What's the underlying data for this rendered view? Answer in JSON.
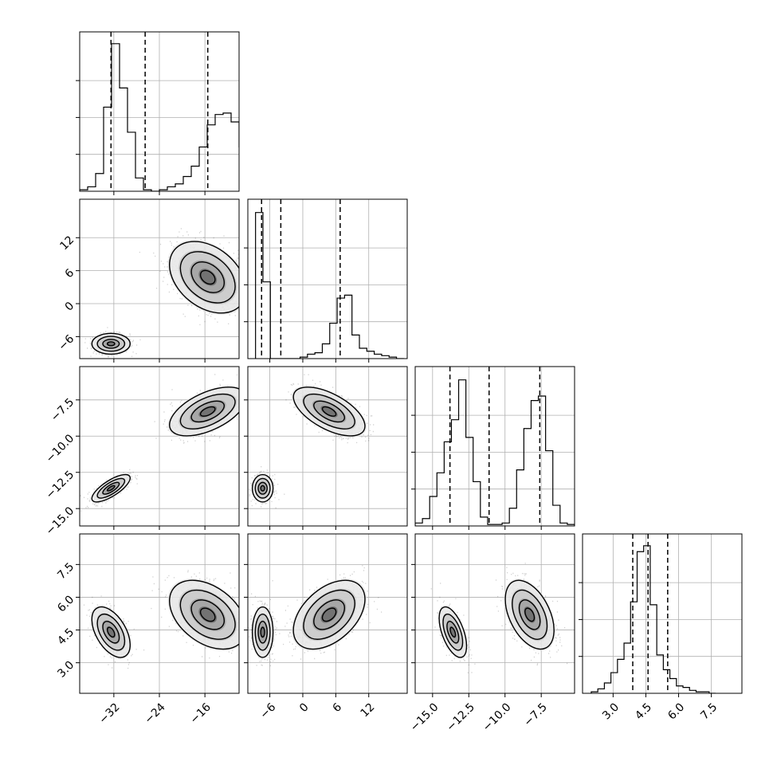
{
  "chart_data": {
    "type": "corner",
    "parameters": [
      {
        "range": [
          -38,
          -10
        ],
        "ticks": [
          -32,
          -24,
          -16
        ],
        "tick_labels": [
          "−32",
          "−24",
          "−16"
        ],
        "quantiles": [
          -32.5,
          -26.5,
          -15.5
        ],
        "hist_edges_start": -38,
        "hist_edges_step": 1.4,
        "hist_counts": [
          0.01,
          0.03,
          0.12,
          0.57,
          1.0,
          0.7,
          0.4,
          0.09,
          0.01,
          0.0,
          0.01,
          0.03,
          0.05,
          0.1,
          0.17,
          0.3,
          0.45,
          0.52,
          0.53,
          0.47,
          0.3,
          0.12,
          0.01
        ],
        "hist_ylim": [
          0,
          1.08
        ]
      },
      {
        "range": [
          -10,
          19
        ],
        "ticks": [
          -6,
          0,
          6,
          12
        ],
        "tick_labels": [
          "−6",
          "0",
          "6",
          "12"
        ],
        "quantiles": [
          -7.5,
          -4.0,
          6.8
        ],
        "hist_edges_start": -8.6,
        "hist_edges_step": 1.35,
        "hist_counts": [
          0.99,
          0.52,
          0.0,
          0.0,
          0.0,
          0.0,
          0.01,
          0.03,
          0.04,
          0.1,
          0.24,
          0.41,
          0.43,
          0.16,
          0.07,
          0.05,
          0.03,
          0.02,
          0.01,
          0.0
        ],
        "hist_ylim": [
          0,
          1.08
        ]
      },
      {
        "range": [
          -16.2,
          -5.2
        ],
        "ticks": [
          -15.0,
          -12.5,
          -10.0,
          -7.5
        ],
        "tick_labels": [
          "−15.0",
          "−12.5",
          "−10.0",
          "−7.5"
        ],
        "quantiles": [
          -13.8,
          -11.1,
          -7.6
        ],
        "hist_edges_start": -16.2,
        "hist_edges_step": 0.5,
        "hist_counts": [
          0.02,
          0.05,
          0.2,
          0.36,
          0.57,
          0.72,
          0.99,
          0.6,
          0.3,
          0.06,
          0.01,
          0.01,
          0.02,
          0.12,
          0.38,
          0.66,
          0.85,
          0.88,
          0.51,
          0.14,
          0.02,
          0.01
        ],
        "hist_ylim": [
          0,
          1.08
        ]
      },
      {
        "range": [
          1.6,
          8.9
        ],
        "ticks": [
          3.0,
          4.5,
          6.0,
          7.5
        ],
        "tick_labels": [
          "3.0",
          "4.5",
          "6.0",
          "7.5"
        ],
        "quantiles": [
          3.9,
          4.6,
          5.5
        ],
        "hist_edges_start": 2.0,
        "hist_edges_step": 0.3,
        "hist_counts": [
          0.01,
          0.03,
          0.07,
          0.14,
          0.23,
          0.34,
          0.62,
          0.96,
          1.0,
          0.6,
          0.26,
          0.16,
          0.1,
          0.05,
          0.04,
          0.02,
          0.01,
          0.01,
          0.0
        ],
        "hist_ylim": [
          0,
          1.08
        ]
      }
    ],
    "modes": [
      {
        "center": [
          -32.5,
          -7.3,
          -13.6,
          4.4
        ],
        "sd": [
          1.6,
          0.9,
          0.45,
          0.55
        ],
        "weight": 0.42
      },
      {
        "center": [
          -15.5,
          4.8,
          -8.3,
          5.2
        ],
        "sd": [
          3.2,
          3.1,
          0.8,
          0.75
        ],
        "weight": 0.58
      }
    ],
    "pair_correlations": {
      "1-0": [
        0.0,
        -0.35
      ],
      "2-0": [
        0.75,
        0.55
      ],
      "2-1": [
        0.0,
        -0.6
      ],
      "3-0": [
        -0.5,
        -0.4
      ],
      "3-1": [
        0.0,
        0.45
      ],
      "3-2": [
        -0.55,
        -0.45
      ]
    },
    "grid": true,
    "xlabel": "",
    "ylabel": ""
  }
}
